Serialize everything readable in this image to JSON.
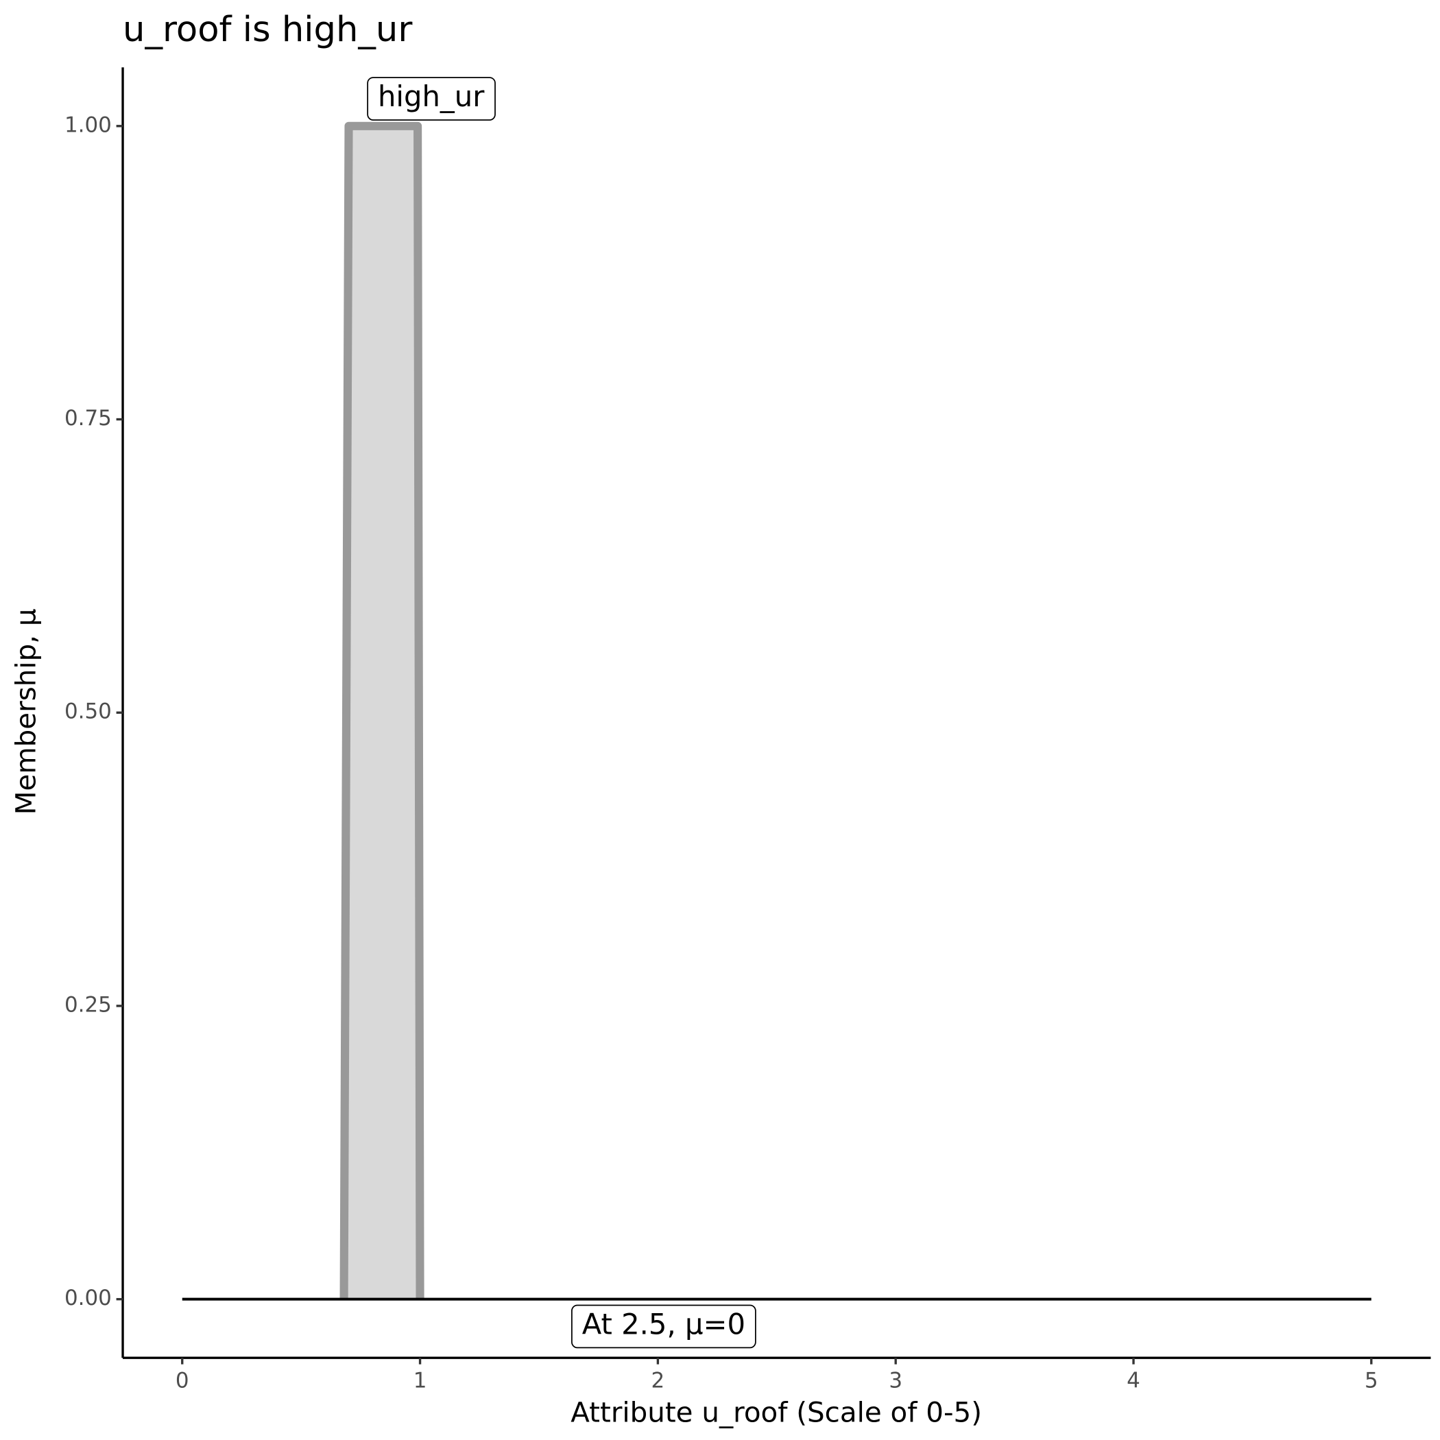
{
  "chart_data": {
    "type": "line",
    "title": "u_roof is high_ur",
    "x_label": "Attribute u_roof (Scale of 0-5)",
    "y_label": "Membership, μ",
    "series": [
      {
        "name": "high_ur",
        "x": [
          0.68,
          0.7,
          0.99,
          1.0
        ],
        "values": [
          0,
          1,
          1,
          0
        ],
        "color": "#999999",
        "fill": "#d9d9d9"
      },
      {
        "x": [
          0,
          5
        ],
        "values": [
          0,
          0
        ],
        "color": "#000000"
      }
    ],
    "annotations": [
      "At 2.5, μ=0"
    ],
    "xlim": [
      -0.25,
      5.25
    ],
    "xticks": [
      0,
      1,
      2,
      3,
      4,
      5
    ],
    "ylim": [
      -0.05,
      1.05
    ],
    "yticks": [
      {
        "value": 0,
        "label": "0.00"
      },
      0.25,
      {
        "value": 0.5,
        "label": "0.50"
      },
      0.75,
      {
        "value": 1,
        "label": "1.00"
      }
    ],
    "grid": false
  }
}
